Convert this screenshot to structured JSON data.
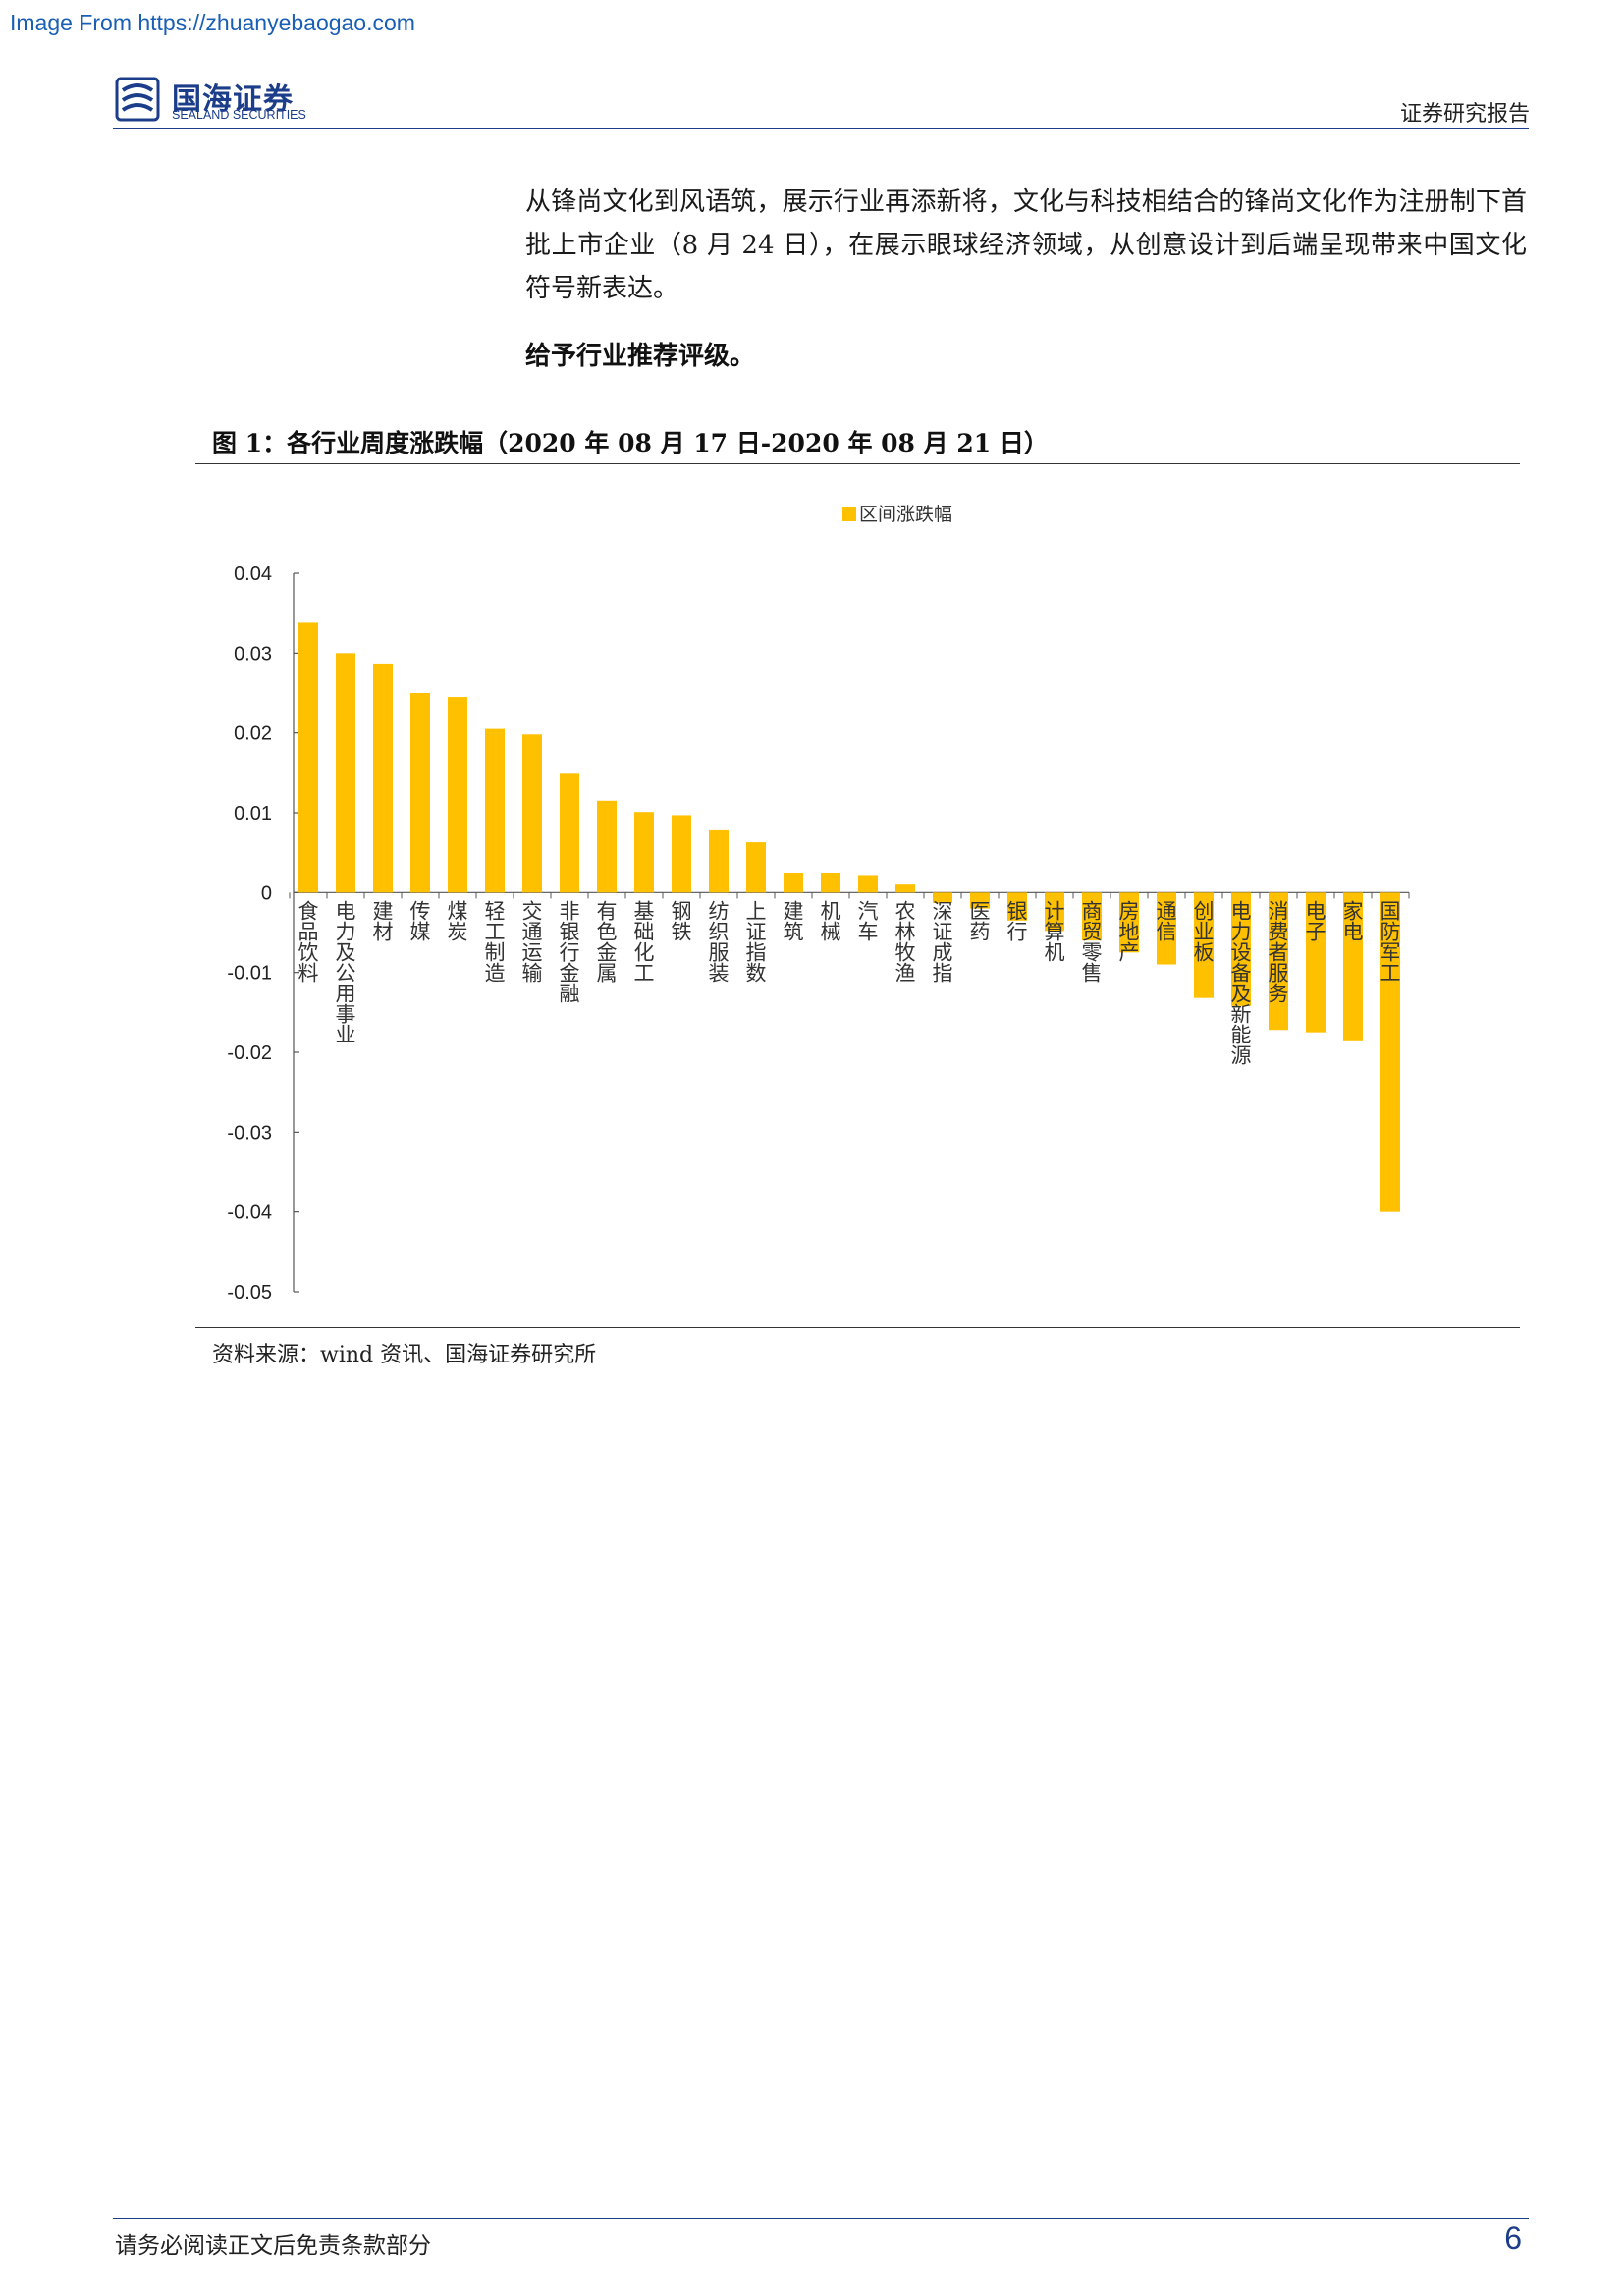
{
  "watermark": "Image From https://zhuanyebaogao.com",
  "header": {
    "logo_cn": "国海证券",
    "logo_en": "SEALAND SECURITIES",
    "report_type": "证券研究报告"
  },
  "body": {
    "paragraph": "从锋尚文化到风语筑，展示行业再添新将，文化与科技相结合的锋尚文化作为注册制下首批上市企业（8 月 24 日），在展示眼球经济领域，从创意设计到后端呈现带来中国文化符号新表达。",
    "rating": "给予行业推荐评级。"
  },
  "figure": {
    "title": "图 1：各行业周度涨跌幅（2020 年 08 月 17 日-2020 年 08 月 21 日）",
    "source": "资料来源：wind 资讯、国海证券研究所"
  },
  "chart_data": {
    "type": "bar",
    "title": "",
    "xlabel": "",
    "ylabel": "",
    "ylim": [
      -0.05,
      0.04
    ],
    "yticks": [
      0.04,
      0.03,
      0.02,
      0.01,
      0,
      -0.01,
      -0.02,
      -0.03,
      -0.04,
      -0.05
    ],
    "ytick_labels": [
      "0.04",
      "0.03",
      "0.02",
      "0.01",
      "0",
      "-0.01",
      "-0.02",
      "-0.03",
      "-0.04",
      "-0.05"
    ],
    "grid": false,
    "legend_position": "top-center",
    "bar_color": "#FFC000",
    "categories": [
      "食品饮料",
      "电力及公用事业",
      "建材",
      "传媒",
      "煤炭",
      "轻工制造",
      "交通运输",
      "非银行金融",
      "有色金属",
      "基础化工",
      "钢铁",
      "纺织服装",
      "上证指数",
      "建筑",
      "机械",
      "汽车",
      "农林牧渔",
      "深证成指",
      "医药",
      "银行",
      "计算机",
      "商贸零售",
      "房地产",
      "通信",
      "创业板",
      "电力设备及新能源",
      "消费者服务",
      "电子",
      "家电",
      "国防军工"
    ],
    "series": [
      {
        "name": "区间涨跌幅",
        "values": [
          0.0338,
          0.03,
          0.0287,
          0.025,
          0.0245,
          0.0205,
          0.0198,
          0.015,
          0.0115,
          0.0101,
          0.0097,
          0.0078,
          0.0063,
          0.0025,
          0.0025,
          0.0022,
          0.001,
          -0.0013,
          -0.002,
          -0.0035,
          -0.0048,
          -0.006,
          -0.0075,
          -0.009,
          -0.0132,
          -0.0142,
          -0.0172,
          -0.0175,
          -0.0185,
          -0.04
        ]
      }
    ]
  },
  "footer": {
    "disclaimer": "请务必阅读正文后免责条款部分",
    "page_number": "6"
  }
}
